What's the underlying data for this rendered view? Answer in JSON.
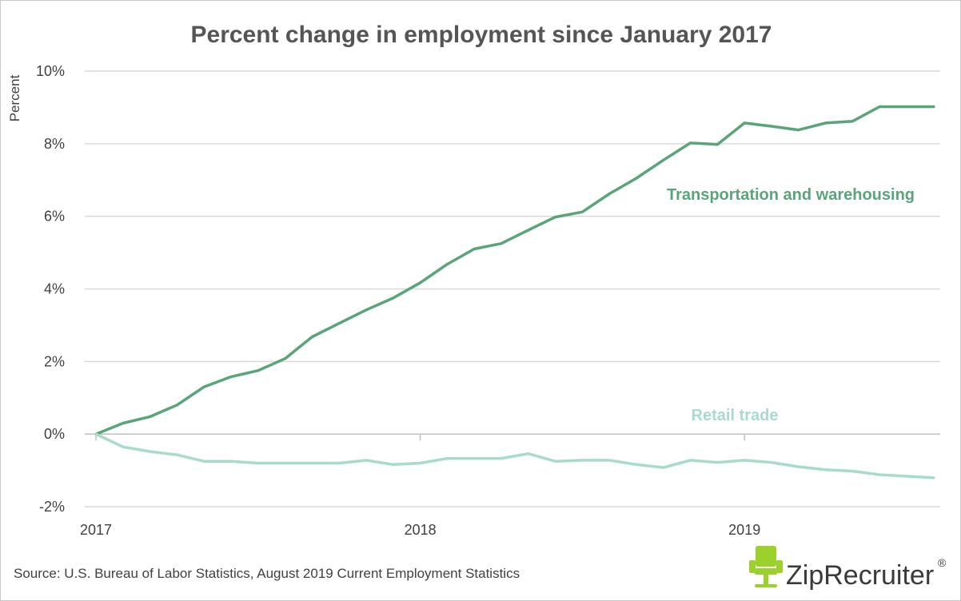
{
  "chart_data": {
    "type": "line",
    "title": "Percent change in employment since January 2017",
    "ylabel": "Percent",
    "xlabel": "",
    "ylim": [
      -2,
      10
    ],
    "y_ticks": [
      {
        "value": -2,
        "label": "-2%"
      },
      {
        "value": 0,
        "label": "0%"
      },
      {
        "value": 2,
        "label": "2%"
      },
      {
        "value": 4,
        "label": "4%"
      },
      {
        "value": 6,
        "label": "6%"
      },
      {
        "value": 8,
        "label": "8%"
      },
      {
        "value": 10,
        "label": "10%"
      }
    ],
    "x_ticks": [
      {
        "index": 0,
        "label": "2017"
      },
      {
        "index": 12,
        "label": "2018"
      },
      {
        "index": 24,
        "label": "2019"
      }
    ],
    "x_start": "2017-01",
    "x_end": "2019-07",
    "grid": true,
    "series": [
      {
        "name": "Transportation and warehousing",
        "color": "#5aa47a",
        "values": [
          0.0,
          0.3,
          0.48,
          0.8,
          1.3,
          1.58,
          1.75,
          2.08,
          2.68,
          3.05,
          3.42,
          3.75,
          4.17,
          4.68,
          5.1,
          5.25,
          5.62,
          5.98,
          6.12,
          6.62,
          7.05,
          7.55,
          8.02,
          7.98,
          8.57,
          8.48,
          8.38,
          8.57,
          8.62,
          9.02,
          9.02,
          9.02
        ]
      },
      {
        "name": "Retail trade",
        "color": "#a8dbcd",
        "values": [
          0.0,
          -0.35,
          -0.48,
          -0.57,
          -0.75,
          -0.75,
          -0.8,
          -0.8,
          -0.8,
          -0.8,
          -0.72,
          -0.84,
          -0.8,
          -0.67,
          -0.67,
          -0.67,
          -0.54,
          -0.75,
          -0.72,
          -0.72,
          -0.84,
          -0.92,
          -0.72,
          -0.78,
          -0.72,
          -0.78,
          -0.9,
          -0.98,
          -1.02,
          -1.12,
          -1.16,
          -1.2
        ]
      }
    ]
  },
  "source_note": "Source: U.S. Bureau of Labor Statistics, August 2019 Current Employment Statistics",
  "logo": {
    "text": "ZipRecruiter",
    "icon": "chair-icon",
    "icon_color": "#9bd12a",
    "mark": "®"
  }
}
